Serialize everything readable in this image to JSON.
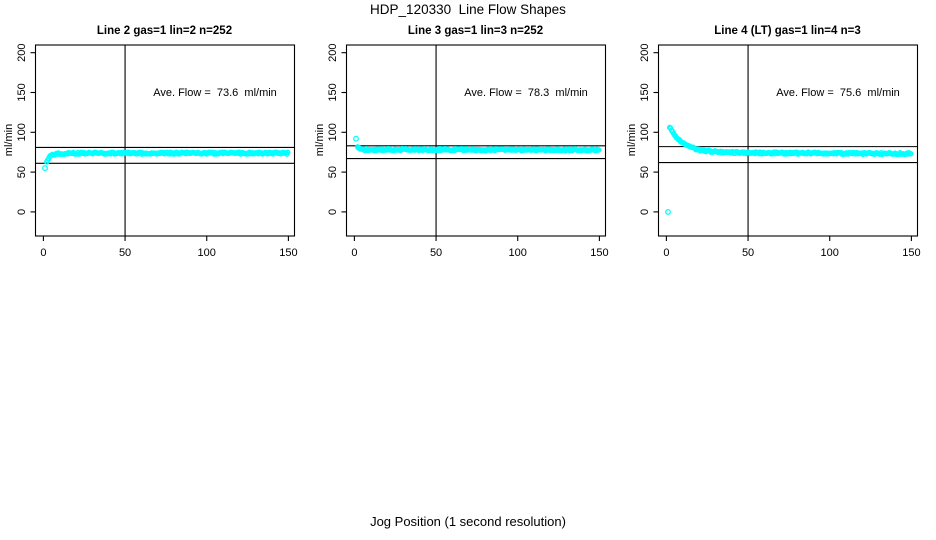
{
  "figure": {
    "title": "HDP_120330  Line Flow Shapes",
    "xlabel": "Jog Position (1 second resolution)",
    "background": "#ffffff",
    "axis_color": "#000000"
  },
  "chart_data": [
    {
      "type": "scatter",
      "title": "Line 2 gas=1 lin=2 n=252",
      "ylabel": "ml/min",
      "annotation": "Ave. Flow =  73.6  ml/min",
      "ave_flow_ml_min": 73.6,
      "n_points": 252,
      "xlim": [
        0,
        150
      ],
      "ylim": [
        0,
        200
      ],
      "xticks": [
        0,
        50,
        100,
        150
      ],
      "yticks": [
        0,
        50,
        100,
        150,
        200
      ],
      "vline_x": 50,
      "ref_lines_y": [
        81,
        61
      ],
      "marker_color": "#00FFFF",
      "isolated_points": [
        [
          1,
          55
        ]
      ],
      "points": [
        [
          2,
          63.5
        ],
        [
          3,
          67
        ],
        [
          4,
          69.5
        ],
        [
          5,
          71
        ],
        [
          6,
          71.8
        ],
        [
          8,
          72.7
        ],
        [
          10,
          73.2
        ],
        [
          15,
          73.6
        ],
        [
          20,
          73.7
        ],
        [
          30,
          73.8
        ],
        [
          50,
          73.8
        ],
        [
          75,
          73.8
        ],
        [
          100,
          73.8
        ],
        [
          125,
          73.8
        ],
        [
          150,
          73.8
        ]
      ]
    },
    {
      "type": "scatter",
      "title": "Line 3 gas=1 lin=3 n=252",
      "ylabel": "ml/min",
      "annotation": "Ave. Flow =  78.3  ml/min",
      "ave_flow_ml_min": 78.3,
      "n_points": 252,
      "xlim": [
        0,
        150
      ],
      "ylim": [
        0,
        200
      ],
      "xticks": [
        0,
        50,
        100,
        150
      ],
      "yticks": [
        0,
        50,
        100,
        150,
        200
      ],
      "vline_x": 50,
      "ref_lines_y": [
        83,
        67
      ],
      "marker_color": "#00FFFF",
      "isolated_points": [
        [
          1,
          92
        ]
      ],
      "points": [
        [
          2,
          81
        ],
        [
          3,
          79.2
        ],
        [
          4,
          78.7
        ],
        [
          6,
          78.4
        ],
        [
          10,
          78.3
        ],
        [
          20,
          78.3
        ],
        [
          50,
          78.2
        ],
        [
          100,
          78.1
        ],
        [
          150,
          78
        ]
      ]
    },
    {
      "type": "scatter",
      "title": "Line 4 (LT) gas=1 lin=4 n=3",
      "ylabel": "ml/min",
      "annotation": "Ave. Flow =  75.6  ml/min",
      "ave_flow_ml_min": 75.6,
      "n_points": 3,
      "xlim": [
        0,
        150
      ],
      "ylim": [
        0,
        200
      ],
      "xticks": [
        0,
        50,
        100,
        150
      ],
      "yticks": [
        0,
        50,
        100,
        150,
        200
      ],
      "vline_x": 50,
      "ref_lines_y": [
        82,
        62
      ],
      "marker_color": "#00FFFF",
      "isolated_points": [
        [
          1,
          0
        ]
      ],
      "points": [
        [
          2,
          106
        ],
        [
          3,
          103
        ],
        [
          4,
          100
        ],
        [
          5,
          97
        ],
        [
          6,
          94.5
        ],
        [
          7,
          92.3
        ],
        [
          8,
          90.3
        ],
        [
          9,
          88.6
        ],
        [
          10,
          87
        ],
        [
          12,
          84.3
        ],
        [
          14,
          82.2
        ],
        [
          16,
          80.5
        ],
        [
          18,
          79.2
        ],
        [
          20,
          78.2
        ],
        [
          23,
          77
        ],
        [
          26,
          76.2
        ],
        [
          30,
          75.5
        ],
        [
          35,
          75
        ],
        [
          40,
          74.7
        ],
        [
          50,
          74.3
        ],
        [
          60,
          74.1
        ],
        [
          75,
          73.9
        ],
        [
          90,
          73.8
        ],
        [
          110,
          73.6
        ],
        [
          130,
          73.4
        ],
        [
          150,
          73.3
        ]
      ]
    }
  ]
}
